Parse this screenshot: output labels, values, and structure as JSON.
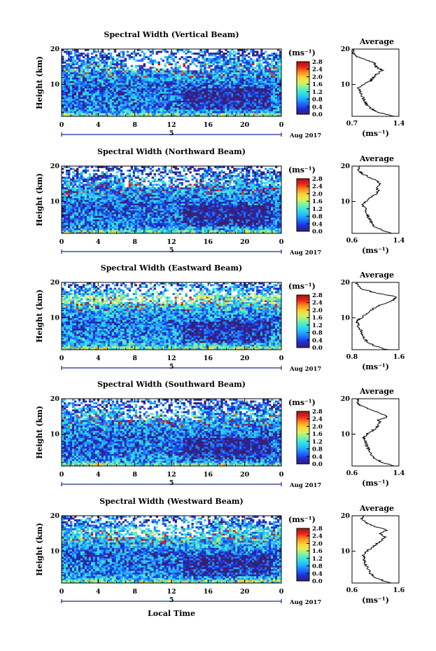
{
  "figure": {
    "xlabel": "Local Time",
    "date_label": "Aug 2017",
    "day_label": "5",
    "ylabel": "Height (km)",
    "colorbar_unit": "(ms⁻¹)",
    "profile_title": "Average",
    "profile_unit": "(ms⁻¹)",
    "colormap": [
      "#3a1f6e",
      "#1b2bd6",
      "#1f6bff",
      "#23b4ff",
      "#33e0e6",
      "#76f2a8",
      "#d8f25a",
      "#ffd23a",
      "#ff8a1a",
      "#e8231c",
      "#a8130f"
    ]
  },
  "chart_data": [
    {
      "type": "heatmap",
      "title": "Spectral Width (Vertical Beam)",
      "x_ticks": [
        "0",
        "4",
        "8",
        "12",
        "16",
        "20",
        "0"
      ],
      "xlim": [
        0,
        24
      ],
      "y_ticks": [
        "10",
        "20"
      ],
      "ylim": [
        1,
        20
      ],
      "colorbar_ticks": [
        "0.0",
        "0.4",
        "0.8",
        "1.2",
        "1.6",
        "2.0",
        "2.4",
        "2.8"
      ],
      "colorbar_range": [
        0.0,
        2.8
      ],
      "profile": {
        "title": "Average",
        "x_ticks": [
          "0.7",
          "1.4"
        ],
        "xlim": [
          0.7,
          1.4
        ],
        "y_ticks": [
          "10",
          "20"
        ],
        "ylim": [
          1,
          20
        ],
        "height_km": [
          1,
          2,
          3,
          4,
          5,
          6,
          7,
          8,
          9,
          10,
          11,
          12,
          13,
          14,
          15,
          16,
          17,
          18,
          19,
          20
        ],
        "width": [
          1.32,
          1.12,
          1.0,
          0.93,
          0.9,
          0.87,
          0.85,
          0.82,
          0.79,
          0.87,
          0.98,
          1.02,
          1.08,
          1.16,
          1.05,
          1.03,
          0.92,
          0.76,
          0.72,
          0.74
        ]
      }
    },
    {
      "type": "heatmap",
      "title": "Spectral Width (Northward Beam)",
      "x_ticks": [
        "0",
        "4",
        "8",
        "12",
        "16",
        "20",
        "0"
      ],
      "xlim": [
        0,
        24
      ],
      "y_ticks": [
        "10",
        "20"
      ],
      "ylim": [
        1,
        20
      ],
      "colorbar_ticks": [
        "0.0",
        "0.4",
        "0.8",
        "1.2",
        "1.6",
        "2.0",
        "2.4",
        "2.8"
      ],
      "colorbar_range": [
        0.0,
        2.8
      ],
      "profile": {
        "title": "Average",
        "x_ticks": [
          "0.6",
          "1.4"
        ],
        "xlim": [
          0.6,
          1.4
        ],
        "y_ticks": [
          "10",
          "20"
        ],
        "ylim": [
          1,
          20
        ],
        "height_km": [
          1,
          2,
          3,
          4,
          5,
          6,
          7,
          8,
          9,
          10,
          11,
          12,
          13,
          14,
          15,
          16,
          17,
          18,
          19,
          20
        ],
        "width": [
          1.3,
          1.1,
          0.98,
          0.94,
          0.9,
          0.87,
          0.85,
          0.82,
          0.78,
          0.84,
          0.92,
          1.0,
          1.06,
          1.0,
          1.1,
          1.0,
          0.88,
          0.76,
          0.7,
          0.72
        ]
      }
    },
    {
      "type": "heatmap",
      "title": "Spectral Width (Eastward Beam)",
      "x_ticks": [
        "0",
        "4",
        "8",
        "12",
        "16",
        "20",
        "0"
      ],
      "xlim": [
        0,
        24
      ],
      "y_ticks": [
        "10",
        "20"
      ],
      "ylim": [
        1,
        20
      ],
      "colorbar_ticks": [
        "0.0",
        "0.4",
        "0.8",
        "1.2",
        "1.6",
        "2.0",
        "2.4",
        "2.8"
      ],
      "colorbar_range": [
        0.0,
        2.8
      ],
      "profile": {
        "title": "Average",
        "x_ticks": [
          "0.8",
          "1.6"
        ],
        "xlim": [
          0.8,
          1.6
        ],
        "y_ticks": [
          "10",
          "20"
        ],
        "ylim": [
          1,
          20
        ],
        "height_km": [
          1,
          2,
          3,
          4,
          5,
          6,
          7,
          8,
          9,
          10,
          11,
          12,
          13,
          14,
          15,
          16,
          17,
          18,
          19,
          20
        ],
        "width": [
          1.42,
          1.2,
          1.08,
          1.02,
          0.98,
          0.96,
          0.93,
          0.9,
          0.88,
          0.95,
          1.05,
          1.12,
          1.2,
          1.35,
          1.5,
          1.55,
          1.2,
          1.0,
          0.9,
          0.88
        ]
      }
    },
    {
      "type": "heatmap",
      "title": "Spectral Width (Southward Beam)",
      "x_ticks": [
        "0",
        "4",
        "8",
        "12",
        "16",
        "20",
        "0"
      ],
      "xlim": [
        0,
        24
      ],
      "y_ticks": [
        "10",
        "20"
      ],
      "ylim": [
        1,
        20
      ],
      "colorbar_ticks": [
        "0.0",
        "0.4",
        "0.8",
        "1.2",
        "1.6",
        "2.0",
        "2.4",
        "2.8"
      ],
      "colorbar_range": [
        0.0,
        2.8
      ],
      "profile": {
        "title": "Average",
        "x_ticks": [
          "0.6",
          "1.4"
        ],
        "xlim": [
          0.6,
          1.4
        ],
        "y_ticks": [
          "10",
          "20"
        ],
        "ylim": [
          1,
          20
        ],
        "height_km": [
          1,
          2,
          3,
          4,
          5,
          6,
          7,
          8,
          9,
          10,
          11,
          12,
          13,
          14,
          15,
          16,
          17,
          18,
          19,
          20
        ],
        "width": [
          1.35,
          1.12,
          1.0,
          0.94,
          0.9,
          0.87,
          0.85,
          0.82,
          0.8,
          0.86,
          0.95,
          1.02,
          1.08,
          1.05,
          1.22,
          1.05,
          0.9,
          0.75,
          0.7,
          0.72
        ]
      }
    },
    {
      "type": "heatmap",
      "title": "Spectral Width (Westward Beam)",
      "x_ticks": [
        "0",
        "4",
        "8",
        "12",
        "16",
        "20",
        "0"
      ],
      "xlim": [
        0,
        24
      ],
      "y_ticks": [
        "10",
        "20"
      ],
      "ylim": [
        1,
        20
      ],
      "colorbar_ticks": [
        "0.0",
        "0.4",
        "0.8",
        "1.2",
        "1.6",
        "2.0",
        "2.4",
        "2.8"
      ],
      "colorbar_range": [
        0.0,
        2.8
      ],
      "profile": {
        "title": "Average",
        "x_ticks": [
          "0.6",
          "1.6"
        ],
        "xlim": [
          0.6,
          1.6
        ],
        "y_ticks": [
          "10",
          "20"
        ],
        "ylim": [
          1,
          20
        ],
        "height_km": [
          1,
          2,
          3,
          4,
          5,
          6,
          7,
          8,
          9,
          10,
          11,
          12,
          13,
          14,
          15,
          16,
          17,
          18,
          19,
          20
        ],
        "width": [
          1.45,
          1.18,
          1.04,
          0.98,
          0.94,
          0.9,
          0.88,
          0.85,
          0.84,
          0.92,
          1.02,
          1.12,
          1.22,
          1.3,
          1.2,
          1.35,
          1.1,
          0.9,
          0.8,
          0.82
        ]
      }
    }
  ]
}
